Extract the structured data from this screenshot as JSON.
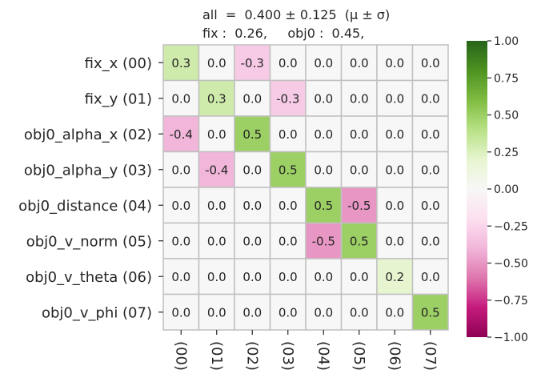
{
  "chart_data": {
    "type": "heatmap",
    "title_lines": [
      "all  =  0.400 ± 0.125  (μ ± σ)",
      "fix :  0.26,     obj0 :  0.45,"
    ],
    "row_labels": [
      "fix_x (00)",
      "fix_y (01)",
      "obj0_alpha_x (02)",
      "obj0_alpha_y (03)",
      "obj0_distance (04)",
      "obj0_v_norm (05)",
      "obj0_v_theta (06)",
      "obj0_v_phi (07)"
    ],
    "col_labels": [
      "(00)",
      "(01)",
      "(02)",
      "(03)",
      "(04)",
      "(05)",
      "(06)",
      "(07)"
    ],
    "values": [
      [
        0.3,
        -0.0,
        -0.3,
        0.0,
        -0.0,
        -0.0,
        -0.0,
        0.0
      ],
      [
        -0.0,
        0.3,
        0.0,
        -0.3,
        -0.0,
        0.0,
        -0.0,
        0.0
      ],
      [
        -0.4,
        0.0,
        0.5,
        0.0,
        0.0,
        -0.0,
        -0.0,
        0.0
      ],
      [
        0.0,
        -0.4,
        -0.0,
        0.5,
        0.0,
        -0.0,
        0.0,
        -0.0
      ],
      [
        0.0,
        -0.0,
        0.0,
        0.0,
        0.5,
        -0.5,
        0.0,
        -0.0
      ],
      [
        -0.0,
        0.0,
        -0.0,
        -0.0,
        -0.5,
        0.5,
        -0.0,
        0.0
      ],
      [
        -0.0,
        0.0,
        0.0,
        -0.0,
        -0.0,
        0.0,
        0.2,
        0.0
      ],
      [
        0.0,
        0.0,
        0.0,
        -0.0,
        -0.0,
        0.0,
        0.0,
        0.5
      ]
    ],
    "vmin": -1.0,
    "vmax": 1.0,
    "colormap": "PiYG",
    "colorbar_ticks": [
      "1.00",
      "0.75",
      "0.50",
      "0.25",
      "0.00",
      "−0.25",
      "−0.50",
      "−0.75",
      "−1.00"
    ],
    "colorbar_tick_values": [
      1.0,
      0.75,
      0.5,
      0.25,
      0.0,
      -0.25,
      -0.5,
      -0.75,
      -1.0
    ],
    "cell_border_color": "#c0c0c0"
  }
}
